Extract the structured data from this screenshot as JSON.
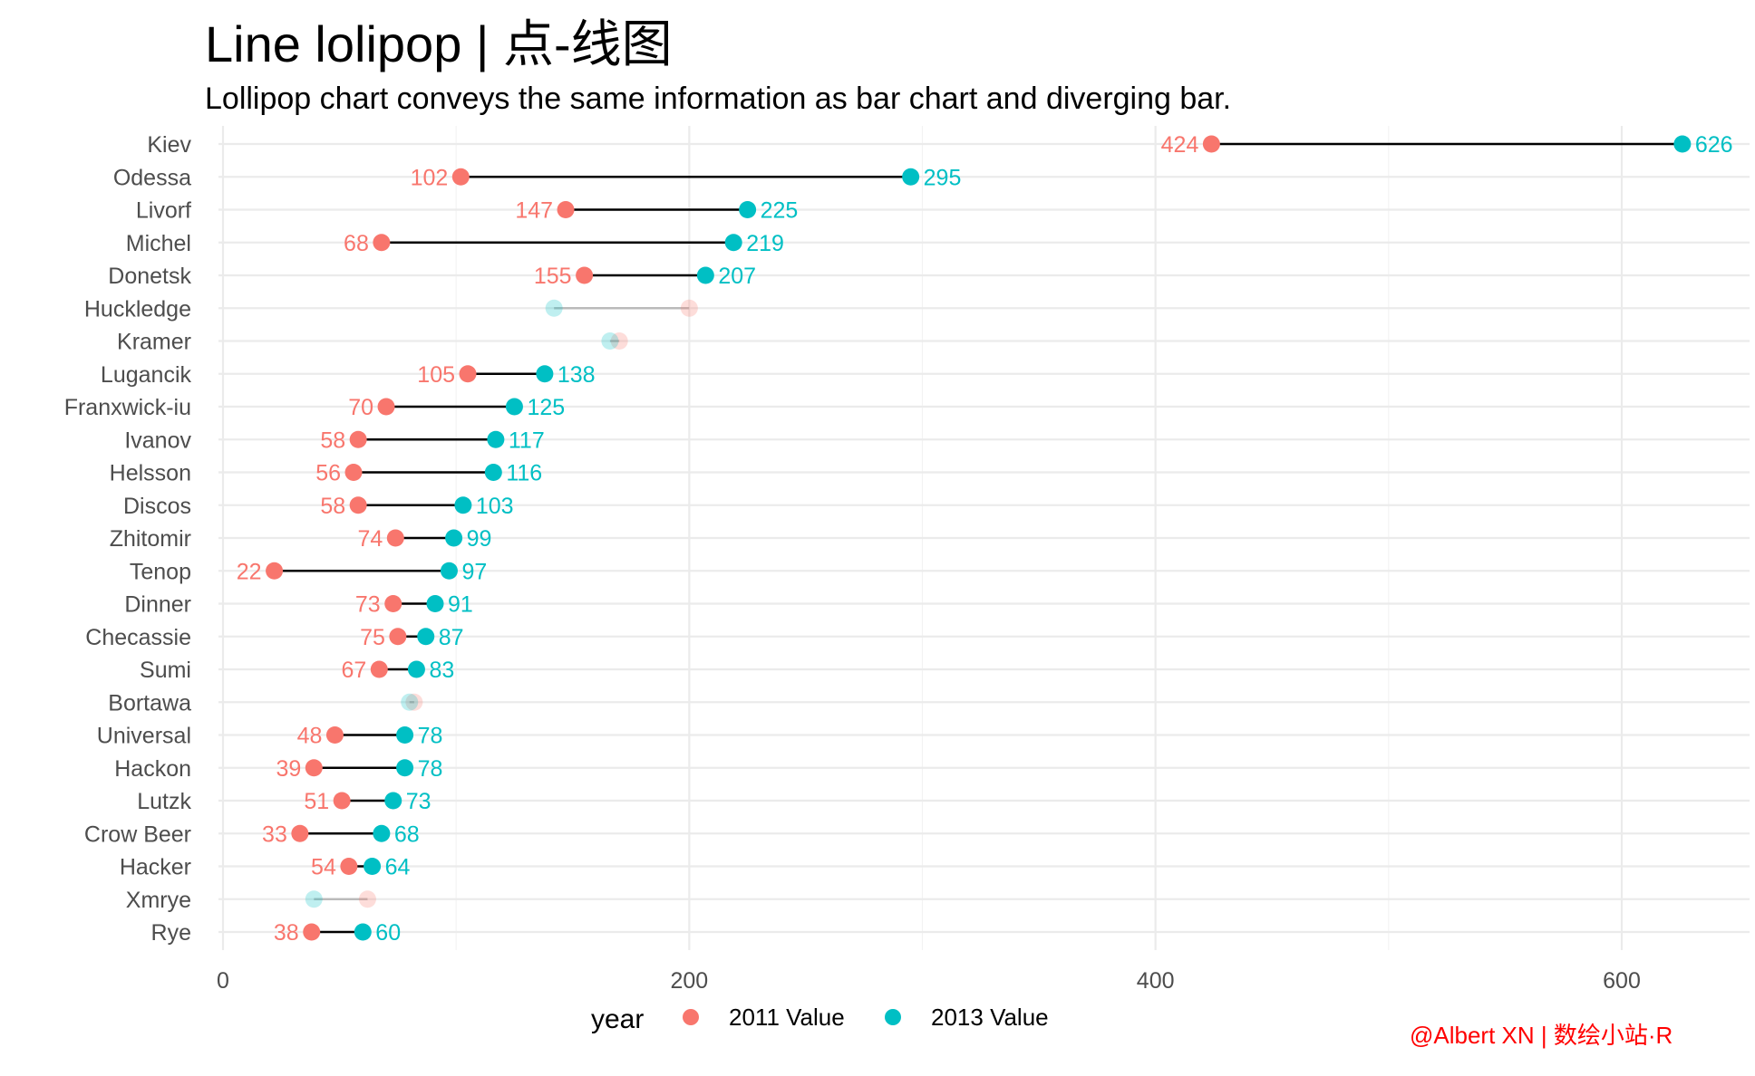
{
  "title": "Line lolipop | 点-线图",
  "subtitle": "Lollipop chart conveys the same information as bar chart and diverging bar.",
  "caption": "@Albert XN | 数绘小站·R",
  "colors": {
    "value_2011": "#F8766D",
    "value_2013": "#00BFC4",
    "segment": "#000000",
    "grid": "#ebebeb",
    "caption": "#ff0000"
  },
  "legend": {
    "title": "year",
    "items": [
      {
        "label": "2011 Value",
        "color": "#F8766D"
      },
      {
        "label": "2013 Value",
        "color": "#00BFC4"
      }
    ],
    "position": "bottom"
  },
  "chart_data": {
    "type": "lollipop",
    "xlim": [
      0,
      650
    ],
    "x_ticks": [
      0,
      200,
      400,
      600
    ],
    "grid": true,
    "series_names": [
      "2011 Value",
      "2013 Value"
    ],
    "rows": [
      {
        "city": "Kiev",
        "v2011": 424,
        "v2013": 626,
        "highlight": true
      },
      {
        "city": "Odessa",
        "v2011": 102,
        "v2013": 295,
        "highlight": true
      },
      {
        "city": "Livorf",
        "v2011": 147,
        "v2013": 225,
        "highlight": true
      },
      {
        "city": "Michel",
        "v2011": 68,
        "v2013": 219,
        "highlight": true
      },
      {
        "city": "Donetsk",
        "v2011": 155,
        "v2013": 207,
        "highlight": true
      },
      {
        "city": "Huckledge",
        "v2011": 200,
        "v2013": 142,
        "highlight": false
      },
      {
        "city": "Kramer",
        "v2011": 170,
        "v2013": 166,
        "highlight": false
      },
      {
        "city": "Lugancik",
        "v2011": 105,
        "v2013": 138,
        "highlight": true
      },
      {
        "city": "Franxwick-iu",
        "v2011": 70,
        "v2013": 125,
        "highlight": true
      },
      {
        "city": "Ivanov",
        "v2011": 58,
        "v2013": 117,
        "highlight": true
      },
      {
        "city": "Helsson",
        "v2011": 56,
        "v2013": 116,
        "highlight": true
      },
      {
        "city": "Discos",
        "v2011": 58,
        "v2013": 103,
        "highlight": true
      },
      {
        "city": "Zhitomir",
        "v2011": 74,
        "v2013": 99,
        "highlight": true
      },
      {
        "city": "Tenop",
        "v2011": 22,
        "v2013": 97,
        "highlight": true
      },
      {
        "city": "Dinner",
        "v2011": 73,
        "v2013": 91,
        "highlight": true
      },
      {
        "city": "Checassie",
        "v2011": 75,
        "v2013": 87,
        "highlight": true
      },
      {
        "city": "Sumi",
        "v2011": 67,
        "v2013": 83,
        "highlight": true
      },
      {
        "city": "Bortawa",
        "v2011": 82,
        "v2013": 80,
        "highlight": false
      },
      {
        "city": "Universal",
        "v2011": 48,
        "v2013": 78,
        "highlight": true
      },
      {
        "city": "Hackon",
        "v2011": 39,
        "v2013": 78,
        "highlight": true
      },
      {
        "city": "Lutzk",
        "v2011": 51,
        "v2013": 73,
        "highlight": true
      },
      {
        "city": "Crow Beer",
        "v2011": 33,
        "v2013": 68,
        "highlight": true
      },
      {
        "city": "Hacker",
        "v2011": 54,
        "v2013": 64,
        "highlight": true
      },
      {
        "city": "Xmrye",
        "v2011": 62,
        "v2013": 39,
        "highlight": false
      },
      {
        "city": "Rye",
        "v2011": 38,
        "v2013": 60,
        "highlight": true
      }
    ]
  }
}
